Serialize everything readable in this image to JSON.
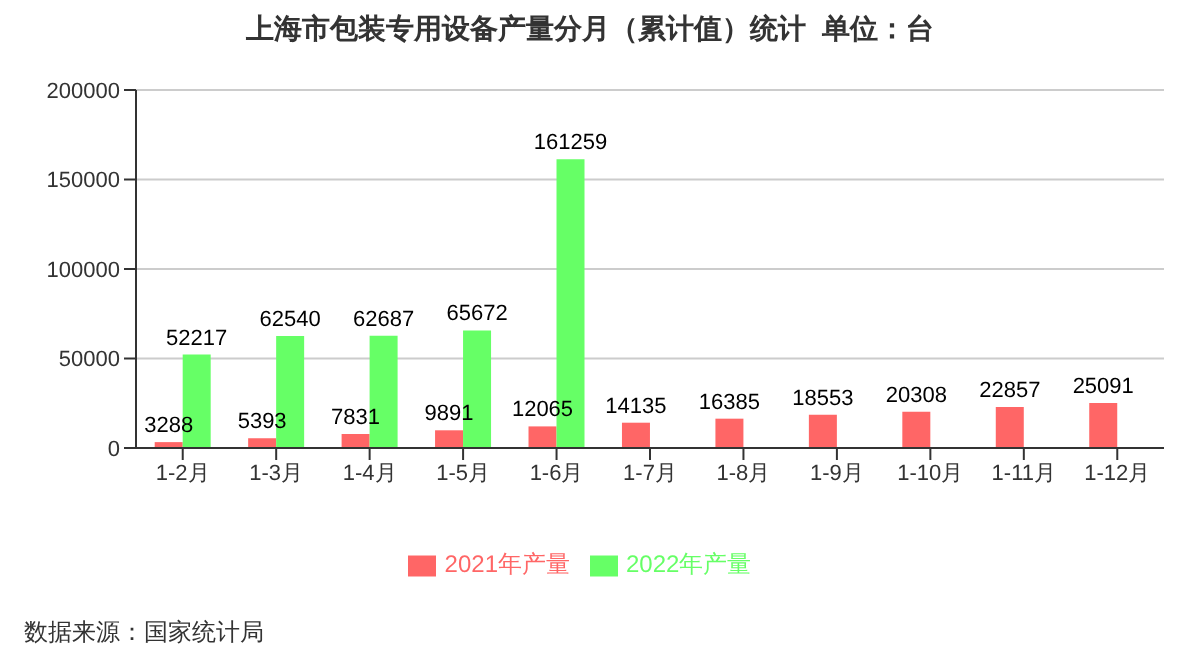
{
  "chart_data": {
    "type": "bar",
    "title": "上海市包装专用设备产量分月（累计值）统计  单位：台",
    "categories": [
      "1-2月",
      "1-3月",
      "1-4月",
      "1-5月",
      "1-6月",
      "1-7月",
      "1-8月",
      "1-9月",
      "1-10月",
      "1-11月",
      "1-12月"
    ],
    "series": [
      {
        "name": "2021年产量",
        "color": "#ff6666",
        "values": [
          3288,
          5393,
          7831,
          9891,
          12065,
          14135,
          16385,
          18553,
          20308,
          22857,
          25091
        ]
      },
      {
        "name": "2022年产量",
        "color": "#66ff66",
        "values": [
          52217,
          62540,
          62687,
          65672,
          161259,
          null,
          null,
          null,
          null,
          null,
          null
        ]
      }
    ],
    "ylim": [
      0,
      200000
    ],
    "yticks": [
      0,
      50000,
      100000,
      150000,
      200000
    ],
    "grid": "y",
    "legend": "bottom",
    "data_labels": true,
    "annotations": [
      "数据来源：国家统计局"
    ]
  }
}
